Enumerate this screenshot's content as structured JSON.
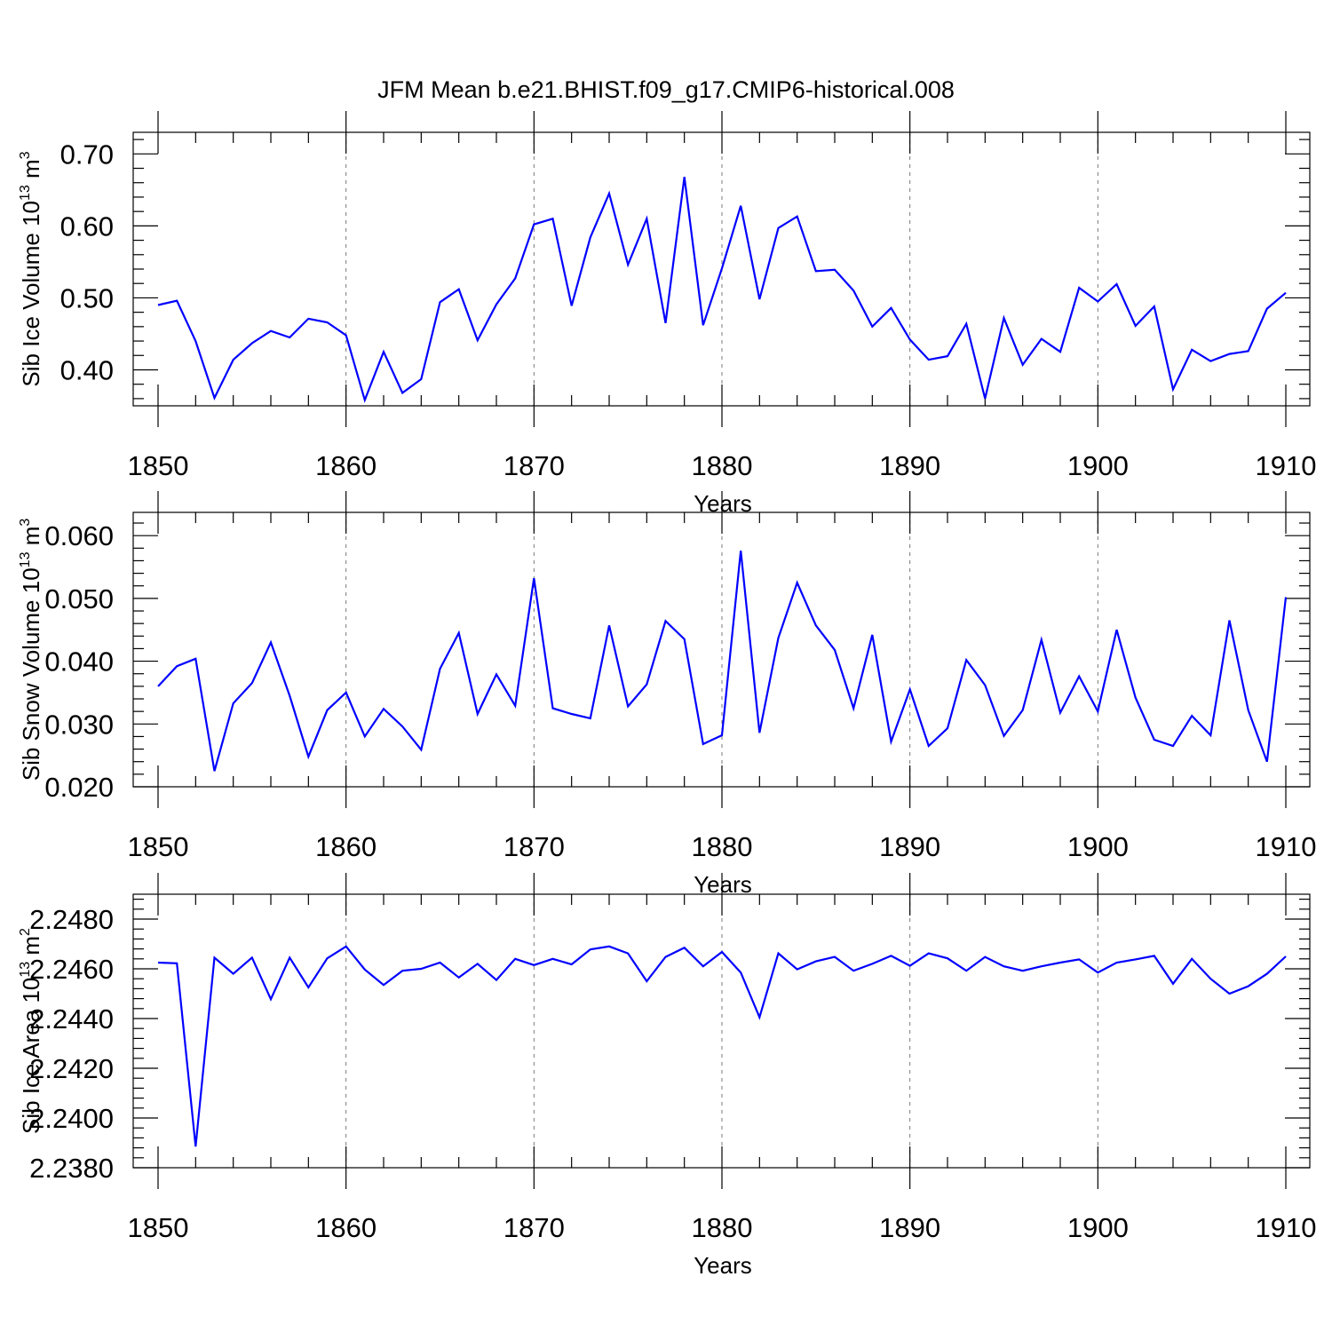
{
  "title": "JFM Mean b.e21.BHIST.f09_g17.CMIP6-historical.008",
  "chart_data": [
    {
      "type": "line",
      "ylabel_main": "Sib Ice Volume 10",
      "ylabel_sup": "13",
      "ylabel_unit": "m",
      "ylabel_unit_sup": "3",
      "xlabel": "Years",
      "xlim": [
        1850,
        1910
      ],
      "ylim": [
        0.35,
        0.73
      ],
      "xticks": [
        "1850",
        "1860",
        "1870",
        "1880",
        "1890",
        "1900",
        "1910"
      ],
      "yticks": [
        "0.40",
        "0.50",
        "0.60",
        "0.70"
      ],
      "grid": "dashed vertical at major x ticks",
      "color": "#0000ff",
      "x": [
        1850,
        1851,
        1852,
        1853,
        1854,
        1855,
        1856,
        1857,
        1858,
        1859,
        1860,
        1861,
        1862,
        1863,
        1864,
        1865,
        1866,
        1867,
        1868,
        1869,
        1870,
        1871,
        1872,
        1873,
        1874,
        1875,
        1876,
        1877,
        1878,
        1879,
        1880,
        1881,
        1882,
        1883,
        1884,
        1885,
        1886,
        1887,
        1888,
        1889,
        1890,
        1891,
        1892,
        1893,
        1894,
        1895,
        1896,
        1897,
        1898,
        1899,
        1900,
        1901,
        1902,
        1903,
        1904,
        1905,
        1906,
        1907,
        1908,
        1909,
        1910
      ],
      "values": [
        0.49,
        0.496,
        0.44,
        0.361,
        0.414,
        0.437,
        0.454,
        0.445,
        0.471,
        0.466,
        0.448,
        0.358,
        0.425,
        0.368,
        0.387,
        0.494,
        0.512,
        0.441,
        0.491,
        0.527,
        0.602,
        0.61,
        0.489,
        0.584,
        0.645,
        0.546,
        0.61,
        0.465,
        0.668,
        0.462,
        0.541,
        0.628,
        0.498,
        0.597,
        0.613,
        0.537,
        0.539,
        0.51,
        0.46,
        0.486,
        0.442,
        0.414,
        0.419,
        0.464,
        0.36,
        0.472,
        0.407,
        0.443,
        0.425,
        0.514,
        0.495,
        0.519,
        0.461,
        0.488,
        0.373,
        0.428,
        0.412,
        0.422,
        0.426,
        0.485,
        0.507
      ]
    },
    {
      "type": "line",
      "ylabel_main": "Sib Snow Volume 10",
      "ylabel_sup": "13",
      "ylabel_unit": "m",
      "ylabel_unit_sup": "3",
      "xlabel": "Years",
      "xlim": [
        1850,
        1910
      ],
      "ylim": [
        0.02,
        0.0637
      ],
      "xticks": [
        "1850",
        "1860",
        "1870",
        "1880",
        "1890",
        "1900",
        "1910"
      ],
      "yticks": [
        "0.020",
        "0.030",
        "0.040",
        "0.050",
        "0.060"
      ],
      "grid": "dashed vertical at major x ticks",
      "color": "#0000ff",
      "x": [
        1850,
        1851,
        1852,
        1853,
        1854,
        1855,
        1856,
        1857,
        1858,
        1859,
        1860,
        1861,
        1862,
        1863,
        1864,
        1865,
        1866,
        1867,
        1868,
        1869,
        1870,
        1871,
        1872,
        1873,
        1874,
        1875,
        1876,
        1877,
        1878,
        1879,
        1880,
        1881,
        1882,
        1883,
        1884,
        1885,
        1886,
        1887,
        1888,
        1889,
        1890,
        1891,
        1892,
        1893,
        1894,
        1895,
        1896,
        1897,
        1898,
        1899,
        1900,
        1901,
        1902,
        1903,
        1904,
        1905,
        1906,
        1907,
        1908,
        1909,
        1910
      ],
      "values": [
        0.036,
        0.0392,
        0.0404,
        0.0225,
        0.0333,
        0.0365,
        0.043,
        0.0345,
        0.0248,
        0.0322,
        0.035,
        0.028,
        0.0324,
        0.0296,
        0.0259,
        0.0388,
        0.0445,
        0.0316,
        0.0379,
        0.0329,
        0.0532,
        0.0325,
        0.0316,
        0.0309,
        0.0457,
        0.0328,
        0.0363,
        0.0464,
        0.0435,
        0.0268,
        0.0282,
        0.0576,
        0.0286,
        0.0437,
        0.0525,
        0.0457,
        0.0418,
        0.0325,
        0.0442,
        0.0272,
        0.0355,
        0.0265,
        0.0293,
        0.0402,
        0.0362,
        0.0281,
        0.0322,
        0.0434,
        0.0318,
        0.0376,
        0.032,
        0.045,
        0.0342,
        0.0275,
        0.0265,
        0.0313,
        0.0282,
        0.0465,
        0.0322,
        0.024,
        0.0502
      ]
    },
    {
      "type": "line",
      "ylabel_main": "Sib Ice Area 10",
      "ylabel_sup": "13",
      "ylabel_unit": "m",
      "ylabel_unit_sup": "2",
      "xlabel": "Years",
      "xlim": [
        1850,
        1910
      ],
      "ylim": [
        2.238,
        2.249
      ],
      "xticks": [
        "1850",
        "1860",
        "1870",
        "1880",
        "1890",
        "1900",
        "1910"
      ],
      "yticks": [
        "2.2380",
        "2.2400",
        "2.2420",
        "2.2440",
        "2.2460",
        "2.2480"
      ],
      "grid": "dashed vertical at major x ticks",
      "color": "#0000ff",
      "x": [
        1850,
        1851,
        1852,
        1853,
        1854,
        1855,
        1856,
        1857,
        1858,
        1859,
        1860,
        1861,
        1862,
        1863,
        1864,
        1865,
        1866,
        1867,
        1868,
        1869,
        1870,
        1871,
        1872,
        1873,
        1874,
        1875,
        1876,
        1877,
        1878,
        1879,
        1880,
        1881,
        1882,
        1883,
        1884,
        1885,
        1886,
        1887,
        1888,
        1889,
        1890,
        1891,
        1892,
        1893,
        1894,
        1895,
        1896,
        1897,
        1898,
        1899,
        1900,
        1901,
        1902,
        1903,
        1904,
        1905,
        1906,
        1907,
        1908,
        1909,
        1910
      ],
      "values": [
        2.24625,
        2.24622,
        2.23885,
        2.24645,
        2.2458,
        2.24645,
        2.24478,
        2.24645,
        2.24525,
        2.24642,
        2.2469,
        2.24597,
        2.24535,
        2.24592,
        2.246,
        2.24625,
        2.24565,
        2.2462,
        2.24555,
        2.2464,
        2.24615,
        2.2464,
        2.24618,
        2.24678,
        2.2469,
        2.24662,
        2.2455,
        2.24648,
        2.24685,
        2.2461,
        2.24668,
        2.24585,
        2.24405,
        2.24662,
        2.24598,
        2.2463,
        2.24648,
        2.24592,
        2.2462,
        2.24652,
        2.24612,
        2.24662,
        2.24642,
        2.24592,
        2.24648,
        2.2461,
        2.24592,
        2.2461,
        2.24625,
        2.24638,
        2.24585,
        2.24625,
        2.24638,
        2.24652,
        2.2454,
        2.2464,
        2.2456,
        2.245,
        2.2453,
        2.2458,
        2.2465
      ]
    }
  ]
}
